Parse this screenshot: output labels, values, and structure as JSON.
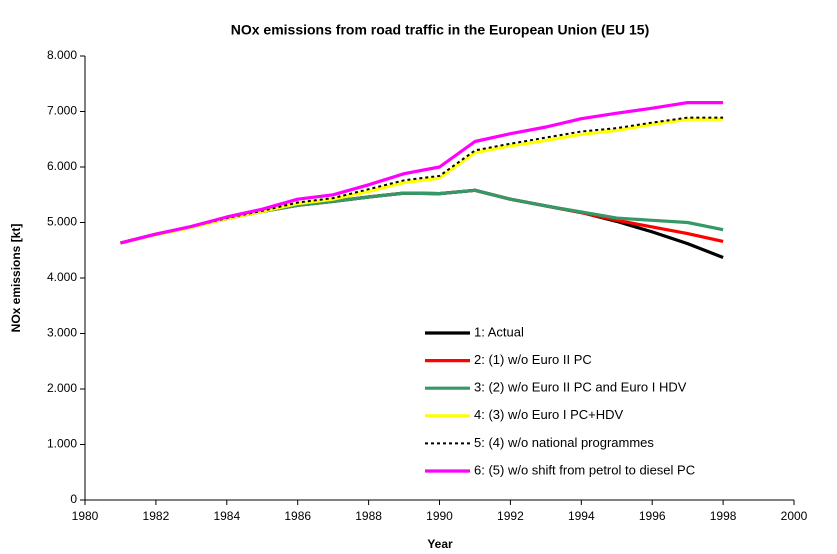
{
  "chart_data": {
    "type": "line",
    "title": "NOx emissions from road traffic in the European Union (EU 15)",
    "xlabel": "Year",
    "ylabel": "NOx emissions [kt]",
    "x": [
      1981,
      1982,
      1983,
      1984,
      1985,
      1986,
      1987,
      1988,
      1989,
      1990,
      1991,
      1992,
      1993,
      1994,
      1995,
      1996,
      1997,
      1998
    ],
    "xlim": [
      1980,
      2000
    ],
    "xticks": [
      1980,
      1982,
      1984,
      1986,
      1988,
      1990,
      1992,
      1994,
      1996,
      1998,
      2000
    ],
    "ylim": [
      0,
      8000
    ],
    "yticks": [
      0,
      {
        "value": 1000,
        "label": "1.000"
      },
      {
        "value": 2000,
        "label": "2.000"
      },
      {
        "value": 3000,
        "label": "3.000"
      },
      {
        "value": 4000,
        "label": "4.000"
      },
      {
        "value": 5000,
        "label": "5.000"
      },
      {
        "value": 6000,
        "label": "6.000"
      },
      {
        "value": 7000,
        "label": "7.000"
      },
      {
        "value": 8000,
        "label": "8.000"
      }
    ],
    "grid": false,
    "series": [
      {
        "name": "1:  Actual",
        "color": "#000000",
        "line_style": "solid",
        "values": [
          4630,
          4790,
          4920,
          5070,
          5200,
          5310,
          5380,
          5460,
          5530,
          5520,
          5580,
          5420,
          5300,
          5180,
          5020,
          4830,
          4620,
          4370
        ]
      },
      {
        "name": "2:  (1) w/o Euro II PC",
        "color": "#ff0000",
        "line_style": "solid",
        "values": [
          4630,
          4790,
          4920,
          5070,
          5200,
          5310,
          5380,
          5460,
          5530,
          5520,
          5580,
          5420,
          5300,
          5180,
          5040,
          4920,
          4800,
          4660
        ]
      },
      {
        "name": "3:  (2) w/o Euro II PC and Euro I HDV",
        "color": "#339966",
        "line_style": "solid",
        "values": [
          4630,
          4790,
          4920,
          5070,
          5200,
          5310,
          5380,
          5460,
          5530,
          5520,
          5580,
          5420,
          5300,
          5190,
          5080,
          5040,
          5000,
          4870
        ]
      },
      {
        "name": "4:  (3) w/o Euro I PC+HDV",
        "color": "#ffff00",
        "line_style": "solid",
        "values": [
          4630,
          4780,
          4910,
          5070,
          5200,
          5340,
          5420,
          5560,
          5720,
          5800,
          6260,
          6380,
          6480,
          6590,
          6660,
          6770,
          6860,
          6860
        ]
      },
      {
        "name": "5:  (4) w/o national programmes",
        "color": "#000000",
        "line_style": "dotted",
        "values": [
          4630,
          4790,
          4920,
          5080,
          5210,
          5360,
          5440,
          5600,
          5760,
          5840,
          6300,
          6420,
          6530,
          6640,
          6700,
          6800,
          6890,
          6890
        ]
      },
      {
        "name": "6:  (5) w/o shift from petrol to diesel PC",
        "color": "#ff00ff",
        "line_style": "solid",
        "values": [
          4630,
          4790,
          4930,
          5100,
          5240,
          5420,
          5500,
          5680,
          5880,
          6000,
          6460,
          6600,
          6720,
          6870,
          6970,
          7060,
          7160,
          7160
        ]
      }
    ]
  }
}
